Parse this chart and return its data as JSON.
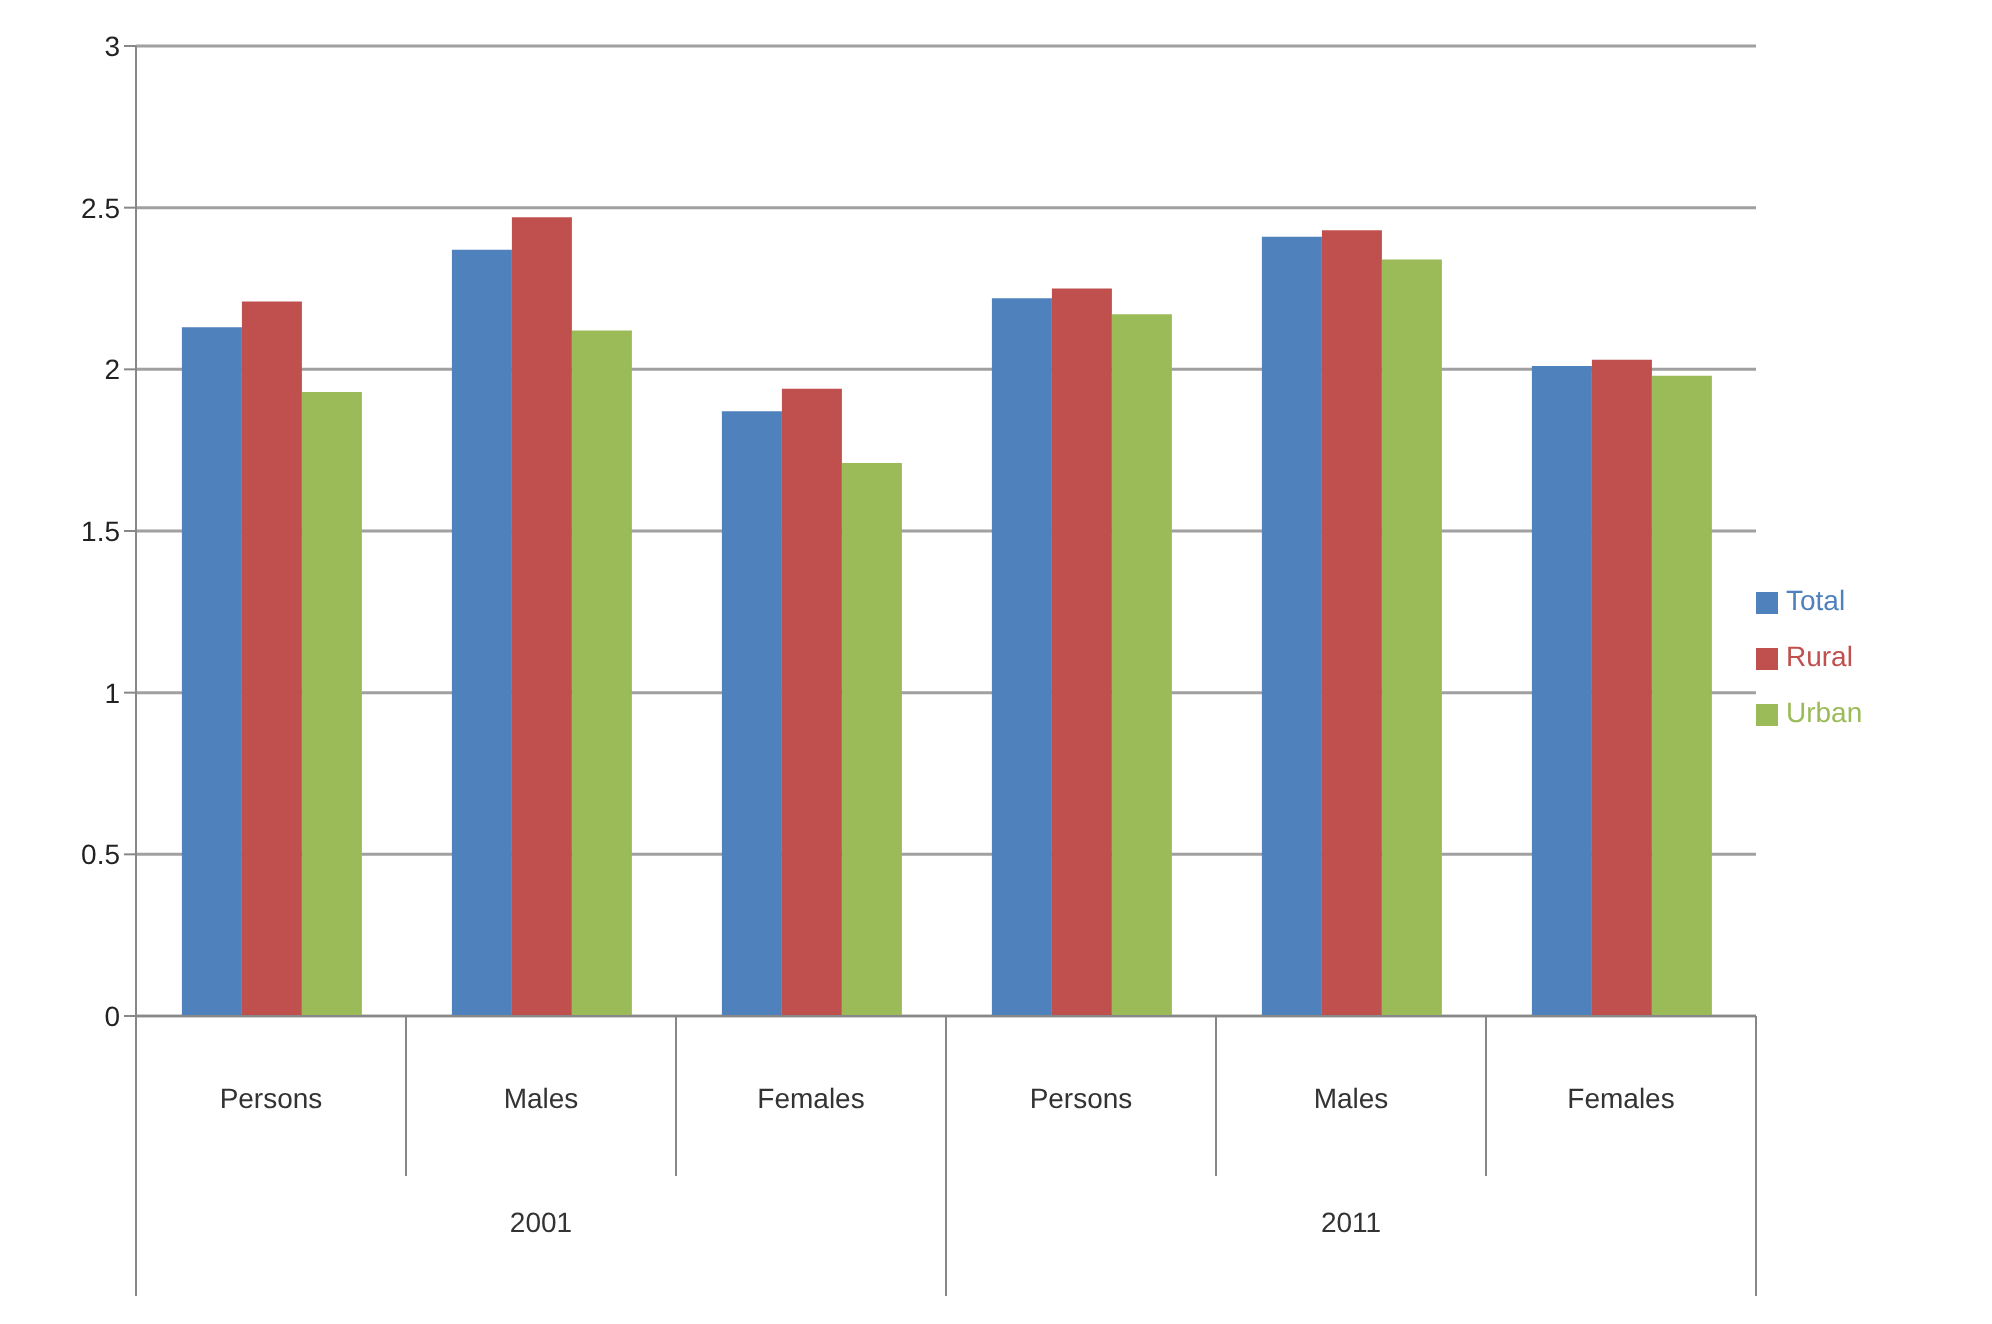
{
  "chart_data": {
    "type": "bar",
    "categories": [
      "Persons",
      "Males",
      "Females",
      "Persons",
      "Males",
      "Females"
    ],
    "series": [
      {
        "name": "Total",
        "color": "#4f81bd",
        "values": [
          2.13,
          2.37,
          1.87,
          2.22,
          2.41,
          2.01
        ]
      },
      {
        "name": "Rural",
        "color": "#c0504d",
        "values": [
          2.21,
          2.47,
          1.94,
          2.25,
          2.43,
          2.03
        ]
      },
      {
        "name": "Urban",
        "color": "#9bbb59",
        "values": [
          1.93,
          2.12,
          1.71,
          2.17,
          2.34,
          1.98
        ]
      }
    ],
    "annotations": [
      "2001",
      "2011"
    ],
    "ylim": [
      0,
      3
    ],
    "yticks": [
      0,
      0.5,
      1,
      1.5,
      2,
      2.5,
      3
    ],
    "grid": "y",
    "legend": "right"
  }
}
